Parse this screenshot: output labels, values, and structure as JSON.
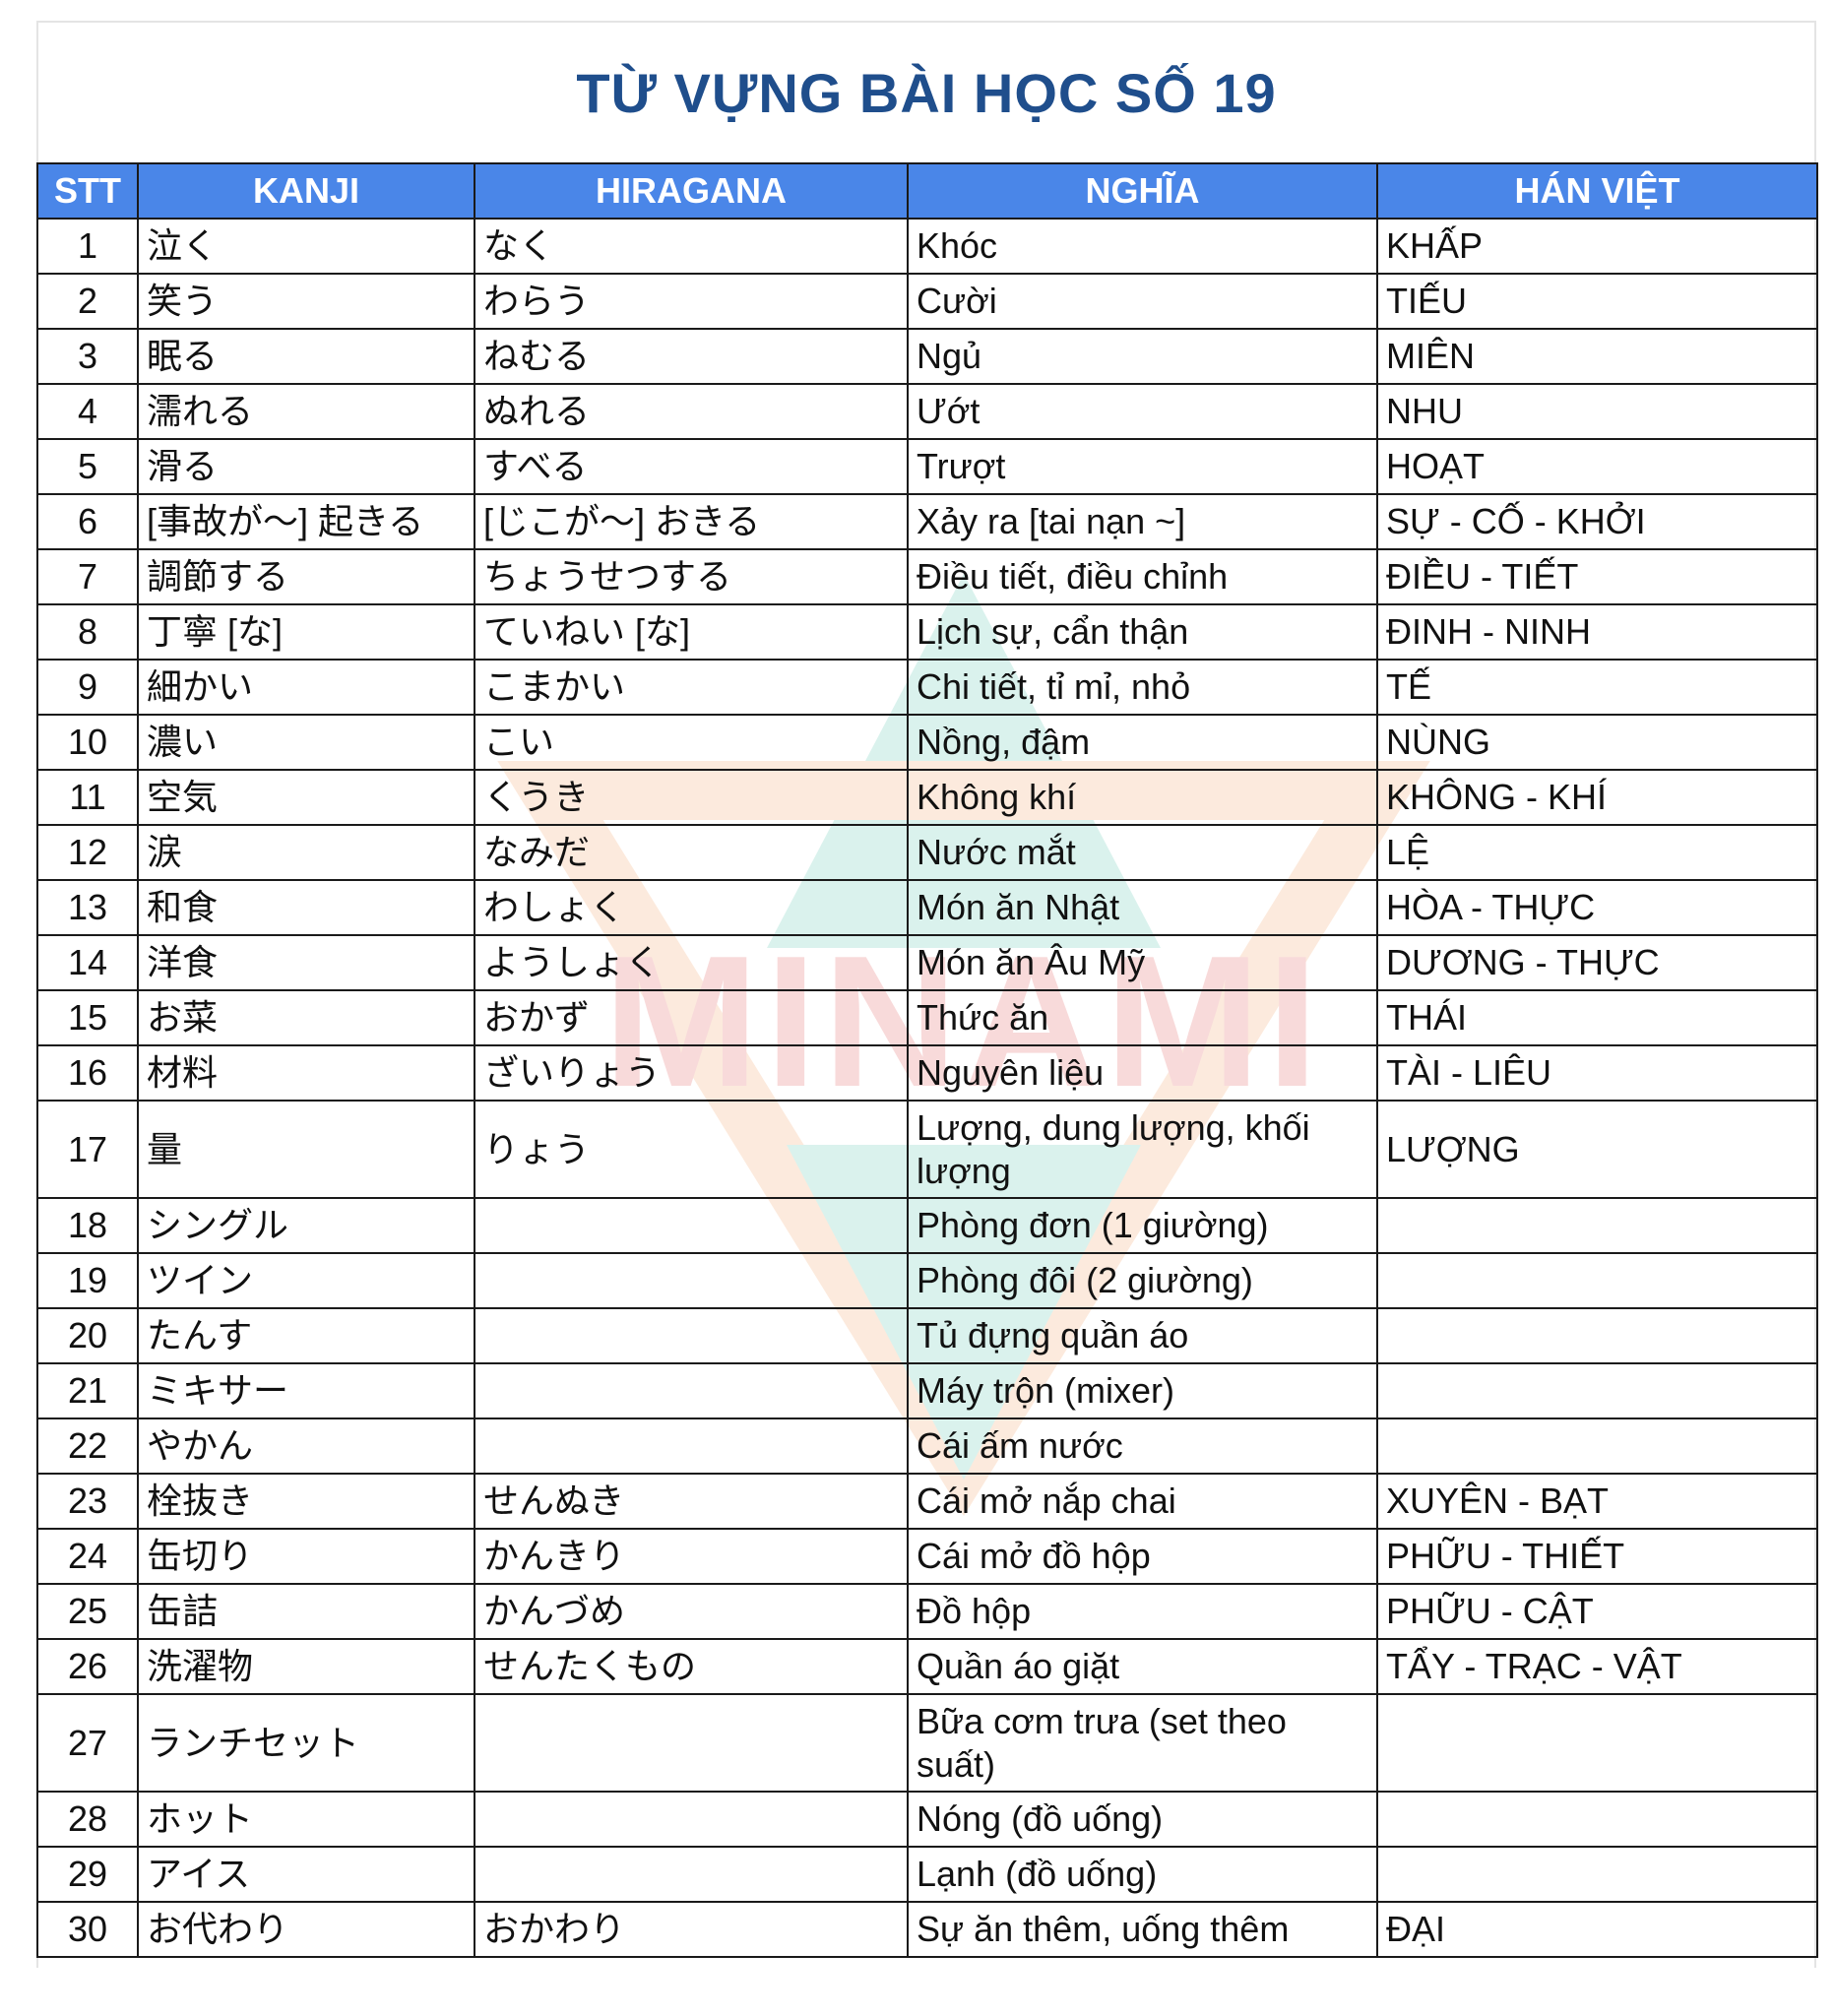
{
  "title": "TỪ VỰNG BÀI HỌC SỐ 19",
  "watermark": "MINAMI",
  "columns": [
    "STT",
    "KANJI",
    "HIRAGANA",
    "NGHĨA",
    "HÁN VIỆT"
  ],
  "rows": [
    [
      "1",
      "泣く",
      "なく",
      "Khóc",
      "KHẤP"
    ],
    [
      "2",
      "笑う",
      "わらう",
      "Cười",
      "TIẾU"
    ],
    [
      "3",
      "眠る",
      "ねむる",
      "Ngủ",
      "MIÊN"
    ],
    [
      "4",
      "濡れる",
      "ぬれる",
      "Ướt",
      "NHU"
    ],
    [
      "5",
      "滑る",
      "すべる",
      "Trượt",
      "HOẠT"
    ],
    [
      "6",
      "[事故が～] 起きる",
      "[じこが～] おきる",
      "Xảy ra [tai nạn ~]",
      "SỰ - CỐ - KHỞI"
    ],
    [
      "7",
      "調節する",
      "ちょうせつする",
      "Điều tiết, điều chỉnh",
      "ĐIỀU - TIẾT"
    ],
    [
      "8",
      "丁寧 [な]",
      "ていねい [な]",
      "Lịch sự, cẩn thận",
      "ĐINH - NINH"
    ],
    [
      "9",
      "細かい",
      "こまかい",
      "Chi tiết, tỉ mỉ, nhỏ",
      "TẾ"
    ],
    [
      "10",
      "濃い",
      "こい",
      "Nồng, đậm",
      "NÙNG"
    ],
    [
      "11",
      "空気",
      "くうき",
      "Không khí",
      "KHÔNG - KHÍ"
    ],
    [
      "12",
      "涙",
      "なみだ",
      "Nước mắt",
      "LỆ"
    ],
    [
      "13",
      "和食",
      "わしょく",
      "Món ăn Nhật",
      "HÒA - THỰC"
    ],
    [
      "14",
      "洋食",
      "ようしょく",
      "Món ăn Âu Mỹ",
      "DƯƠNG - THỰC"
    ],
    [
      "15",
      "お菜",
      "おかず",
      "Thức ăn",
      "THÁI"
    ],
    [
      "16",
      "材料",
      "ざいりょう",
      "Nguyên liệu",
      "TÀI - LIÊU"
    ],
    [
      "17",
      "量",
      "りょう",
      "Lượng, dung lượng, khối lượng",
      "LƯỢNG"
    ],
    [
      "18",
      "シングル",
      "",
      "Phòng đơn (1 giường)",
      ""
    ],
    [
      "19",
      "ツイン",
      "",
      "Phòng đôi (2 giường)",
      ""
    ],
    [
      "20",
      "たんす",
      "",
      "Tủ đựng quần áo",
      ""
    ],
    [
      "21",
      "ミキサー",
      "",
      "Máy trộn (mixer)",
      ""
    ],
    [
      "22",
      "やかん",
      "",
      "Cái ấm nước",
      ""
    ],
    [
      "23",
      "栓抜き",
      "せんぬき",
      "Cái mở nắp chai",
      "XUYÊN - BẠT"
    ],
    [
      "24",
      "缶切り",
      "かんきり",
      "Cái mở đồ hộp",
      "PHỮU - THIẾT"
    ],
    [
      "25",
      "缶詰",
      "かんづめ",
      "Đồ hộp",
      "PHỮU - CẬT"
    ],
    [
      "26",
      "洗濯物",
      "せんたくもの",
      "Quần áo giặt",
      "TẨY - TRẠC - VẬT"
    ],
    [
      "27",
      "ランチセット",
      "",
      "Bữa cơm trưa (set theo suất)",
      ""
    ],
    [
      "28",
      "ホット",
      "",
      "Nóng (đồ uống)",
      ""
    ],
    [
      "29",
      "アイス",
      "",
      "Lạnh (đồ uống)",
      ""
    ],
    [
      "30",
      "お代わり",
      "おかわり",
      "Sự ăn thêm, uống thêm",
      "ĐẠI"
    ]
  ],
  "colors": {
    "title": "#1f4e8c",
    "header_bg": "#4a86e8",
    "header_text": "#ffffff",
    "watermark_red": "#e35a5a",
    "watermark_orange": "#f4a46a",
    "watermark_teal": "#5cc7b2"
  }
}
